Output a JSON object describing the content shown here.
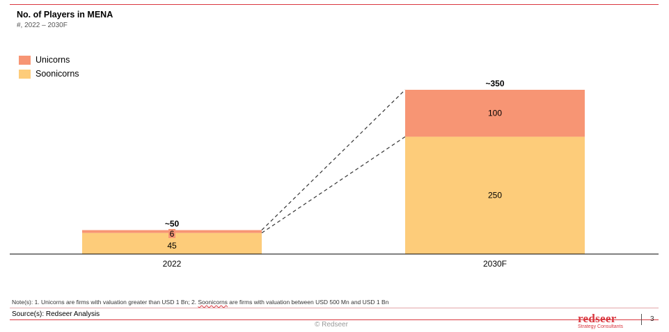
{
  "header": {
    "title": "No. of Players in MENA",
    "subtitle": "#, 2022 – 2030F"
  },
  "legend": [
    {
      "label": "Unicorns",
      "color": "#f79574"
    },
    {
      "label": "Soonicorns",
      "color": "#fdcc7a"
    }
  ],
  "chart_data": {
    "type": "bar",
    "stacked": true,
    "categories": [
      "2022",
      "2030F"
    ],
    "series": [
      {
        "name": "Soonicorns",
        "values": [
          45,
          250
        ],
        "color": "#fdcc7a"
      },
      {
        "name": "Unicorns",
        "values": [
          6,
          100
        ],
        "color": "#f79574"
      }
    ],
    "totals": [
      "~50",
      "~350"
    ],
    "ylim": [
      0,
      350
    ],
    "grid": false,
    "legend_position": "top-left",
    "connectors": "dashed"
  },
  "footer": {
    "note_prefix": "Note(s): 1.  Unicorns are firms with valuation greater than USD 1 Bn; 2. ",
    "note_squiggle": "Soonicorns",
    "note_suffix": " are firms with valuation between USD 500 Mn and USD 1 Bn",
    "source": "Source(s): Redseer Analysis",
    "copyright": "© Redseer",
    "brand_name": "redseer",
    "brand_tagline": "Strategy Consultants",
    "page_number": "3"
  }
}
